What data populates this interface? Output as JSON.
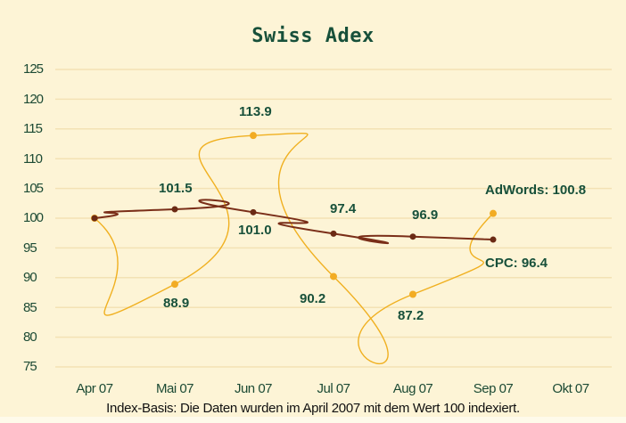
{
  "chart_data": {
    "type": "line",
    "title": "Swiss Adex",
    "xlabel": "",
    "ylabel": "",
    "categories": [
      "Apr 07",
      "Mai 07",
      "Jun 07",
      "Jul 07",
      "Aug 07",
      "Sep 07",
      "Okt 07"
    ],
    "yticks": [
      "125",
      "120",
      "115",
      "110",
      "105",
      "100",
      "95",
      "90",
      "85",
      "80",
      "75"
    ],
    "ylim": [
      75,
      125
    ],
    "grid": true,
    "series": [
      {
        "name": "AdWords",
        "color": "#f0b020",
        "values": [
          100,
          88.9,
          113.9,
          90.2,
          87.2,
          100.8,
          null
        ],
        "labels": [
          "",
          "88.9",
          "113.9",
          "90.2",
          "87.2",
          "AdWords: 100.8"
        ]
      },
      {
        "name": "CPC",
        "color": "#7a2e18",
        "values": [
          100,
          101.5,
          101.0,
          97.4,
          96.9,
          96.4,
          null
        ],
        "labels": [
          "",
          "101.5",
          "101.0",
          "97.4",
          "96.9",
          "CPC: 96.4"
        ]
      }
    ],
    "footnote": "Index-Basis: Die Daten wurden im April 2007 mit dem Wert 100 indexiert."
  },
  "colors": {
    "background": "#fdf4d6",
    "gridline": "#f3e2b4",
    "text_dark_green": "#17503a",
    "adwords_line": "#f0b020",
    "cpc_line": "#7a2e18"
  }
}
